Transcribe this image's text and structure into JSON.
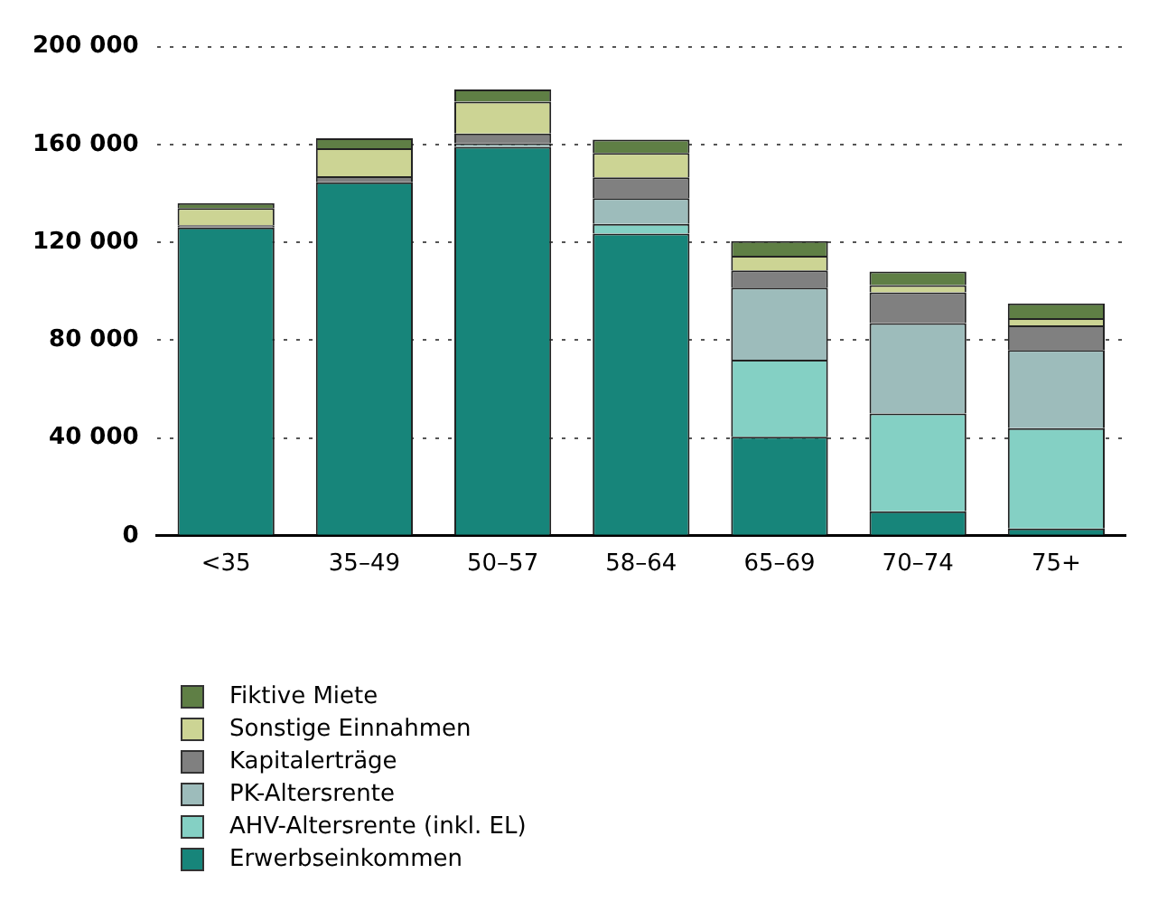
{
  "chart_data": {
    "type": "bar",
    "stacked": true,
    "categories": [
      "<35",
      "35–49",
      "50–57",
      "58–64",
      "65–69",
      "70–74",
      "75+"
    ],
    "series": [
      {
        "name": "Erwerbseinkommen",
        "color": "#17857a",
        "values": [
          126000,
          144500,
          159000,
          123500,
          40500,
          10000,
          3000
        ]
      },
      {
        "name": "AHV-Altersrente (inkl. EL)",
        "color": "#84d0c4",
        "values": [
          0,
          0,
          0,
          4000,
          31500,
          40000,
          41000
        ]
      },
      {
        "name": "PK-Altersrente",
        "color": "#9dbcbb",
        "values": [
          0,
          null,
          1500,
          10500,
          29500,
          37000,
          32000
        ]
      },
      {
        "name": "Kapitalerträge",
        "color": "#808080",
        "values": [
          1000,
          2500,
          4000,
          8500,
          7000,
          12500,
          10000
        ]
      },
      {
        "name": "Sonstige Einnahmen",
        "color": "#ccd494",
        "values": [
          7000,
          11500,
          13000,
          10000,
          6000,
          3000,
          3000
        ]
      },
      {
        "name": "Fiktive Miete",
        "color": "#5f7f45",
        "values": [
          2000,
          4000,
          5000,
          5500,
          6000,
          5500,
          6000
        ]
      }
    ],
    "ylim": [
      0,
      200000
    ],
    "yticks": [
      {
        "value": 0,
        "label": "0"
      },
      {
        "value": 40000,
        "label": "40 000"
      },
      {
        "value": 80000,
        "label": "80 000"
      },
      {
        "value": 120000,
        "label": "120 000"
      },
      {
        "value": 160000,
        "label": "160 000"
      },
      {
        "value": 200000,
        "label": "200 000"
      }
    ],
    "grid": "y",
    "legend": "bottom left"
  }
}
